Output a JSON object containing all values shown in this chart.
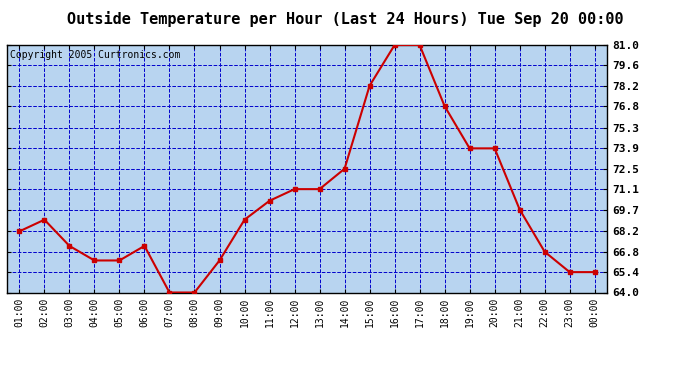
{
  "title": "Outside Temperature per Hour (Last 24 Hours) Tue Sep 20 00:00",
  "copyright": "Copyright 2005 Curtronics.com",
  "hours": [
    "01:00",
    "02:00",
    "03:00",
    "04:00",
    "05:00",
    "06:00",
    "07:00",
    "08:00",
    "09:00",
    "10:00",
    "11:00",
    "12:00",
    "13:00",
    "14:00",
    "15:00",
    "16:00",
    "17:00",
    "18:00",
    "19:00",
    "20:00",
    "21:00",
    "22:00",
    "23:00",
    "00:00"
  ],
  "temps": [
    68.2,
    69.0,
    67.2,
    66.2,
    66.2,
    67.2,
    64.0,
    64.0,
    66.2,
    69.0,
    70.3,
    71.1,
    71.1,
    72.5,
    78.2,
    81.0,
    81.0,
    76.8,
    73.9,
    73.9,
    69.7,
    66.8,
    65.4,
    65.4
  ],
  "line_color": "#cc0000",
  "marker_color": "#cc0000",
  "grid_color": "#0000cc",
  "plot_bg": "#b8d4f0",
  "outer_bg": "#ffffff",
  "ylim": [
    64.0,
    81.0
  ],
  "yticks": [
    64.0,
    65.4,
    66.8,
    68.2,
    69.7,
    71.1,
    72.5,
    73.9,
    75.3,
    76.8,
    78.2,
    79.6,
    81.0
  ],
  "title_fontsize": 11,
  "copyright_fontsize": 7
}
